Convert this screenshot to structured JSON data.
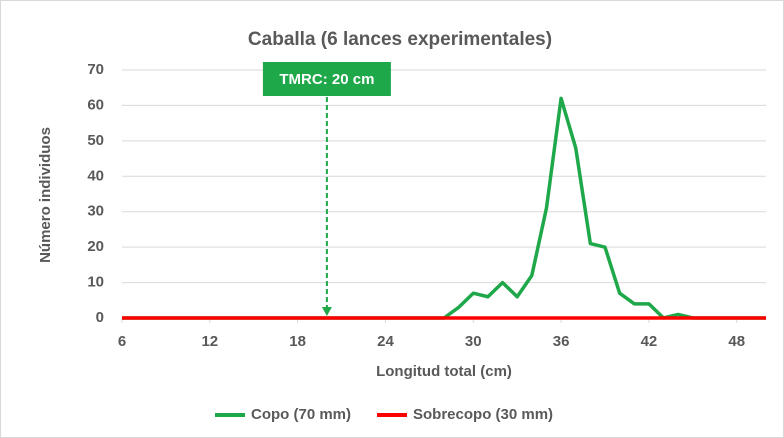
{
  "chart_data": {
    "type": "line",
    "title": "Caballa (6 lances experimentales)",
    "xlabel": "Longitud total (cm)",
    "ylabel": "Número individuos",
    "x": [
      6,
      7,
      8,
      9,
      10,
      11,
      12,
      13,
      14,
      15,
      16,
      17,
      18,
      19,
      20,
      21,
      22,
      23,
      24,
      25,
      26,
      27,
      28,
      29,
      30,
      31,
      32,
      33,
      34,
      35,
      36,
      37,
      38,
      39,
      40,
      41,
      42,
      43,
      44,
      45,
      46,
      47,
      48,
      49,
      50
    ],
    "series": [
      {
        "name": "Copo (70 mm)",
        "color": "#1fa84a",
        "values": [
          0,
          0,
          0,
          0,
          0,
          0,
          0,
          0,
          0,
          0,
          0,
          0,
          0,
          0,
          0,
          0,
          0,
          0,
          0,
          0,
          0,
          0,
          0,
          3,
          7,
          6,
          10,
          6,
          12,
          31,
          62,
          48,
          21,
          20,
          7,
          4,
          4,
          0,
          1,
          0,
          0,
          0,
          0,
          0,
          0
        ]
      },
      {
        "name": "Sobrecopo (30 mm)",
        "color": "#ff0000",
        "values": [
          0,
          0,
          0,
          0,
          0,
          0,
          0,
          0,
          0,
          0,
          0,
          0,
          0,
          0,
          0,
          0,
          0,
          0,
          0,
          0,
          0,
          0,
          0,
          0,
          0,
          0,
          0,
          0,
          0,
          0,
          0,
          0,
          0,
          0,
          0,
          0,
          0,
          0,
          0,
          0,
          0,
          0,
          0,
          0,
          0
        ]
      }
    ],
    "xlim": [
      6,
      50
    ],
    "xticks": [
      6,
      12,
      18,
      24,
      30,
      36,
      42,
      48
    ],
    "ylim": [
      0,
      70
    ],
    "yticks": [
      0,
      10,
      20,
      30,
      40,
      50,
      60,
      70
    ],
    "grid": true,
    "legend": "bottom",
    "annotation": {
      "text": "TMRC: 20 cm",
      "x": 20,
      "color": "#1fa84a"
    }
  }
}
